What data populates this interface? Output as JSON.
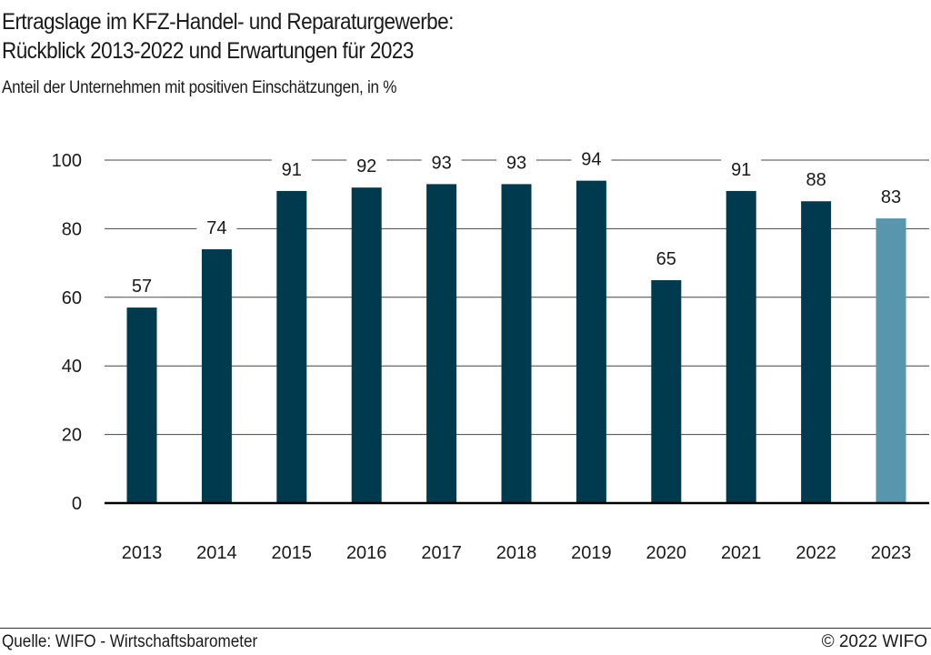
{
  "header": {
    "title_line1": "Ertragslage im KFZ-Handel- und Reparaturgewerbe:",
    "title_line2": "Rückblick 2013-2022 und Erwartungen für 2023",
    "subtitle": "Anteil der Unternehmen mit positiven Einschätzungen, in %"
  },
  "footer": {
    "source": "Quelle: WIFO - Wirtschaftsbarometer",
    "copyright": "© 2022 WIFO"
  },
  "chart_data": {
    "type": "bar",
    "title": "Ertragslage im KFZ-Handel- und Reparaturgewerbe: Rückblick 2013-2022 und Erwartungen für 2023",
    "subtitle": "Anteil der Unternehmen mit positiven Einschätzungen, in %",
    "xlabel": "",
    "ylabel": "",
    "categories": [
      "2013",
      "2014",
      "2015",
      "2016",
      "2017",
      "2018",
      "2019",
      "2020",
      "2021",
      "2022",
      "2023"
    ],
    "values": [
      57,
      74,
      91,
      92,
      93,
      93,
      94,
      65,
      91,
      88,
      83
    ],
    "bar_kind": [
      "actual",
      "actual",
      "actual",
      "actual",
      "actual",
      "actual",
      "actual",
      "actual",
      "actual",
      "actual",
      "expectation"
    ],
    "colors": {
      "actual": "#003a4f",
      "expectation": "#5896ad"
    },
    "ylim": [
      0,
      100
    ],
    "yticks": [
      0,
      20,
      40,
      60,
      80,
      100
    ],
    "grid": true,
    "legend": "none",
    "data_labels": true
  }
}
